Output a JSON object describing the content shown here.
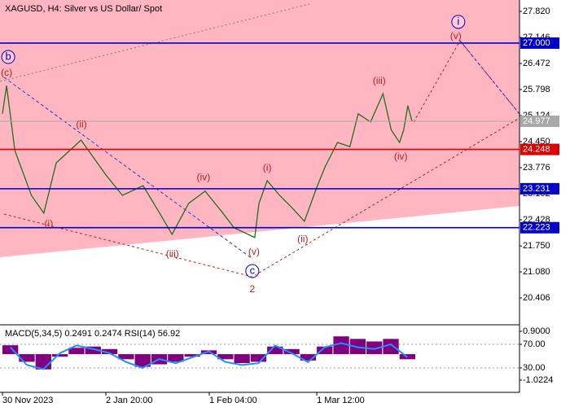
{
  "chart_data": [
    {
      "type": "line",
      "title": "XAGUSD, H4:  Silver vs US Dollar/ Spot",
      "x": [
        0,
        1,
        3,
        7,
        10,
        13,
        19,
        25,
        29,
        34,
        38,
        41,
        45,
        49,
        53,
        56,
        61,
        62,
        64,
        67,
        70,
        73,
        76,
        78,
        81,
        84,
        86,
        89,
        92,
        94,
        96,
        97,
        98,
        99
      ],
      "series": [
        {
          "color": "#1f6f1f",
          "values": [
            25.17,
            25.9,
            24.22,
            23.06,
            22.6,
            23.9,
            24.49,
            23.59,
            23.06,
            23.31,
            22.6,
            22.05,
            22.85,
            23.17,
            22.64,
            22.22,
            21.97,
            22.85,
            23.44,
            23.06,
            22.74,
            22.39,
            23.27,
            23.8,
            24.43,
            24.32,
            25.17,
            24.96,
            25.69,
            24.75,
            24.43,
            24.75,
            25.38,
            24.98
          ]
        }
      ],
      "xlim": [
        0,
        125
      ],
      "xticks": [
        {
          "value": 0,
          "label": "30 Nov 2023"
        },
        {
          "value": 25,
          "label": "2 Jan 20:00"
        },
        {
          "value": 50,
          "label": "1 Feb 04:00"
        },
        {
          "value": 76,
          "label": "1 Mar 12:00"
        }
      ],
      "ylim": [
        19.732,
        28.115
      ],
      "yticks": [
        {
          "value": 27.82,
          "label": "27.820"
        },
        {
          "value": 27.146,
          "label": "27.146"
        },
        {
          "value": 26.472,
          "label": "26.472"
        },
        {
          "value": 25.798,
          "label": "25.798"
        },
        {
          "value": 25.124,
          "label": "25.124"
        },
        {
          "value": 24.45,
          "label": "24.450"
        },
        {
          "value": 23.776,
          "label": "23.776"
        },
        {
          "value": 23.102,
          "label": "23.102"
        },
        {
          "value": 22.428,
          "label": "22.428"
        },
        {
          "value": 21.75,
          "label": "21.750"
        },
        {
          "value": 21.08,
          "label": "21.080"
        },
        {
          "value": 20.406,
          "label": "20.406"
        }
      ],
      "levels": {
        "values": [
          27,
          24.977,
          24.248,
          23.231,
          22.223
        ],
        "value_labels": [
          "27.000",
          "24.977",
          "24.248",
          "23.231",
          "22.223"
        ],
        "colors": [
          "#0000cc",
          "#a8a8a8",
          "#e00000",
          "#0000cc",
          "#0000cc"
        ]
      },
      "annotations": [
        {
          "text": "(c)",
          "x": 1,
          "y": 26.22,
          "color": "#b22222",
          "circled": false
        },
        {
          "text": "b",
          "x": 1.4,
          "y": 26.64,
          "color": "#0000cc",
          "circled": true
        },
        {
          "text": "(ii)",
          "x": 19.1,
          "y": 24.89,
          "color": "#b22222",
          "circled": false
        },
        {
          "text": "(i)",
          "x": 11.2,
          "y": 22.32,
          "color": "#b22222",
          "circled": false
        },
        {
          "text": "(iii)",
          "x": 41.1,
          "y": 21.54,
          "color": "#b22222",
          "circled": false
        },
        {
          "text": "(iv)",
          "x": 48.6,
          "y": 23.52,
          "color": "#b22222",
          "circled": false
        },
        {
          "text": "(v)",
          "x": 60.8,
          "y": 21.59,
          "color": "#b22222",
          "circled": false
        },
        {
          "text": "c",
          "x": 60.4,
          "y": 21.1,
          "color": "#0000cc",
          "circled": true
        },
        {
          "text": "2",
          "x": 60.4,
          "y": 20.62,
          "color": "#b22222",
          "circled": false
        },
        {
          "text": "(i)",
          "x": 64,
          "y": 23.76,
          "color": "#b22222",
          "circled": false
        },
        {
          "text": "(ii)",
          "x": 72.6,
          "y": 21.92,
          "color": "#b22222",
          "circled": false
        },
        {
          "text": "(iii)",
          "x": 91.1,
          "y": 26.01,
          "color": "#b22222",
          "circled": false
        },
        {
          "text": "(iv)",
          "x": 96.3,
          "y": 24.05,
          "color": "#b22222",
          "circled": false
        },
        {
          "text": "(v)",
          "x": 109.6,
          "y": 27.17,
          "color": "#b22222",
          "circled": false
        },
        {
          "text": "i",
          "x": 110.2,
          "y": 27.55,
          "color": "#0000cc",
          "circled": true
        }
      ]
    },
    {
      "type": "combo",
      "title": "MACD(5,34,5) 0.2491 0.2474 RSI(14) 56.92",
      "x": [
        0,
        4,
        8,
        12,
        16,
        20,
        24,
        28,
        32,
        36,
        40,
        44,
        48,
        52,
        56,
        60,
        64,
        68,
        72,
        76,
        80,
        84,
        88,
        92,
        96
      ],
      "xlim": [
        0,
        125
      ],
      "series": [
        {
          "type": "bar",
          "color": "#800080",
          "values": [
            0.35,
            -0.3,
            -0.6,
            -0.1,
            0.25,
            0.3,
            0.2,
            -0.2,
            -0.5,
            -0.4,
            -0.3,
            -0.1,
            0.15,
            -0.2,
            -0.35,
            -0.3,
            0.3,
            0.2,
            -0.25,
            0.3,
            0.7,
            0.6,
            0.5,
            0.6,
            -0.2
          ]
        },
        {
          "type": "line",
          "axis": "y2",
          "color": "#1e90ff",
          "values": [
            65,
            35,
            28,
            55,
            68,
            62,
            55,
            40,
            30,
            45,
            38,
            48,
            58,
            40,
            35,
            38,
            68,
            55,
            40,
            65,
            72,
            65,
            62,
            70,
            48
          ]
        }
      ],
      "ylim": [
        -1.503,
        1.124
      ],
      "yticks": [
        {
          "value": 0.9,
          "label": "0.9000"
        },
        {
          "value": -1.0224,
          "label": "-1.0224"
        }
      ],
      "y2lim": [
        -11.4,
        101.7
      ],
      "y2ticks": [
        {
          "value": 70,
          "label": "70.00"
        },
        {
          "value": 30,
          "label": "30.00"
        }
      ]
    }
  ]
}
